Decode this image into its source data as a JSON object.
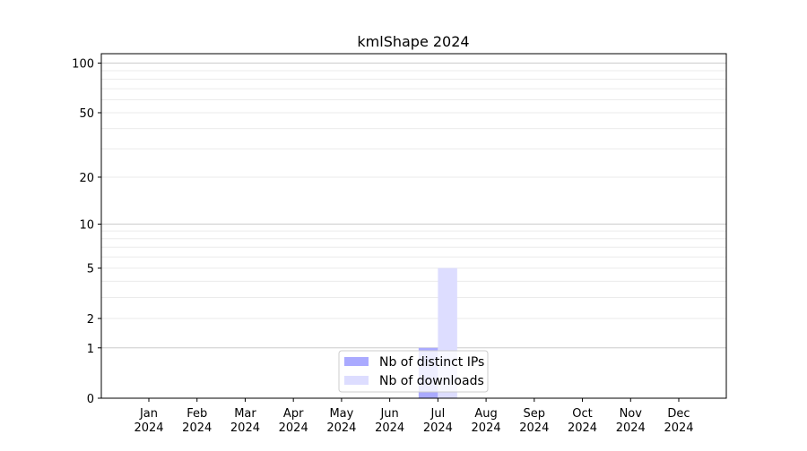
{
  "chart_data": {
    "type": "bar",
    "title": "kmlShape 2024",
    "xlabel": "",
    "ylabel": "",
    "yscale": "log(1+y)",
    "ylim": [
      0,
      114
    ],
    "yticks": [
      0,
      1,
      2,
      5,
      10,
      20,
      50,
      100
    ],
    "ytick_labels": [
      "0",
      "1",
      "2",
      "5",
      "10",
      "20",
      "50",
      "100"
    ],
    "grid": true,
    "legend_position": "bottom-center",
    "categories": [
      "Jan\n2024",
      "Feb\n2024",
      "Mar\n2024",
      "Apr\n2024",
      "May\n2024",
      "Jun\n2024",
      "Jul\n2024",
      "Aug\n2024",
      "Sep\n2024",
      "Oct\n2024",
      "Nov\n2024",
      "Dec\n2024"
    ],
    "series": [
      {
        "name": "Nb of distinct IPs",
        "color": "#aaaaff",
        "values": [
          0,
          0,
          0,
          0,
          0,
          0,
          1,
          0,
          0,
          0,
          0,
          0
        ]
      },
      {
        "name": "Nb of downloads",
        "color": "#ddddff",
        "values": [
          0,
          0,
          0,
          0,
          0,
          0,
          5,
          0,
          0,
          0,
          0,
          0
        ]
      }
    ]
  }
}
